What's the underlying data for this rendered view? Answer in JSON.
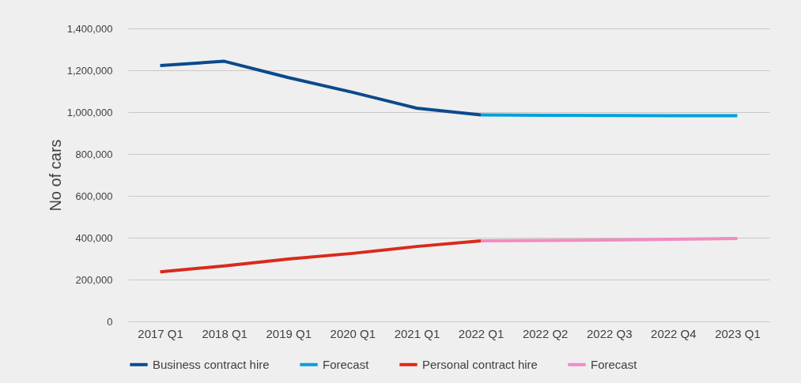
{
  "chart_data": {
    "type": "line",
    "ylabel": "No of cars",
    "categories": [
      "2017 Q1",
      "2018 Q1",
      "2019 Q1",
      "2020 Q1",
      "2021 Q1",
      "2022 Q1",
      "2022 Q2",
      "2022 Q3",
      "2022 Q4",
      "2023 Q1"
    ],
    "series": [
      {
        "name": "Business contract hire",
        "color": "#0b4a8b",
        "values": [
          1223000,
          1243000,
          1165000,
          1095000,
          1019000,
          987000,
          null,
          null,
          null,
          null
        ]
      },
      {
        "name": "Forecast",
        "color": "#00a0dc",
        "values": [
          null,
          null,
          null,
          null,
          null,
          987000,
          985000,
          984000,
          983000,
          983000
        ]
      },
      {
        "name": "Personal contract hire",
        "color": "#d92a1c",
        "values": [
          237000,
          265000,
          298000,
          325000,
          358000,
          385000,
          null,
          null,
          null,
          null
        ]
      },
      {
        "name": "Forecast",
        "color": "#f08cc0",
        "values": [
          null,
          null,
          null,
          null,
          null,
          385000,
          387000,
          389000,
          392000,
          396000
        ]
      }
    ],
    "ylim": [
      0,
      1400000
    ],
    "yticks": [
      0,
      {
        "value": 200000,
        "label": "200,000"
      },
      {
        "value": 400000,
        "label": "400,000"
      },
      {
        "value": 600000,
        "label": "600,000"
      },
      {
        "value": 800000,
        "label": "800,000"
      },
      {
        "value": 1000000,
        "label": "1,000,000"
      },
      {
        "value": 1200000,
        "label": "1,200,000"
      },
      {
        "value": 1400000,
        "label": "1,400,000"
      }
    ],
    "grid": "y",
    "legend": "bottom",
    "marker": "none",
    "line_style": "solid"
  }
}
